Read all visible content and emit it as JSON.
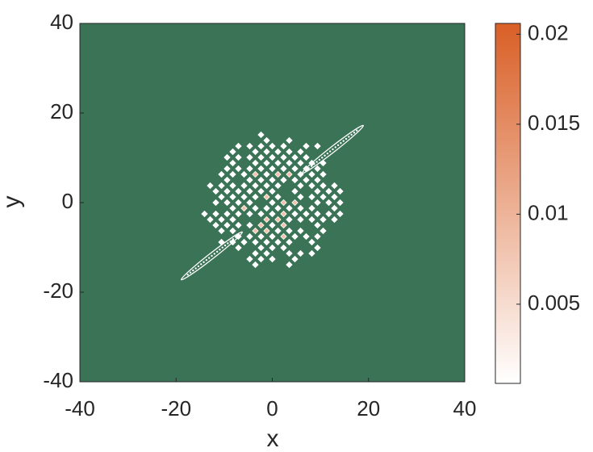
{
  "chart_data": {
    "type": "heatmap",
    "xlabel": "x",
    "ylabel": "y",
    "xlim": [
      -40,
      40
    ],
    "ylim": [
      -40,
      40
    ],
    "xticks": [
      -40,
      -20,
      0,
      20,
      40
    ],
    "yticks": [
      -40,
      -20,
      0,
      20,
      40
    ],
    "background_color": "#3a7356",
    "colorbar": {
      "clim": [
        0.0006,
        0.0206
      ],
      "ticks": [
        0.005,
        0.01,
        0.015,
        0.02
      ],
      "colors": [
        "#ffffff",
        "#d95f26"
      ]
    }
  }
}
